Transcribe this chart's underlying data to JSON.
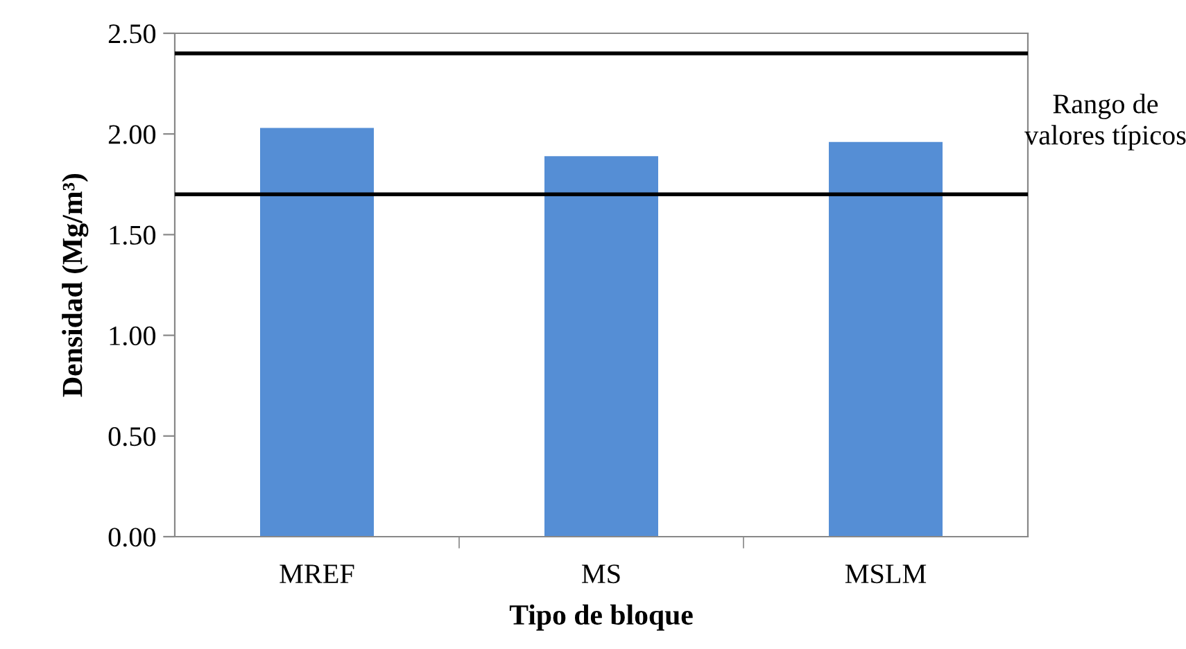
{
  "chart_data": {
    "type": "bar",
    "xlabel": "Tipo de bloque",
    "ylabel": "Densidad (Mg/m³)",
    "categories": [
      "MREF",
      "MS",
      "MSLM"
    ],
    "values": [
      2.03,
      1.89,
      1.96
    ],
    "color": "#558ed5",
    "ylim": [
      0,
      2.5
    ],
    "yticks": [
      {
        "value": 0,
        "label": "0.00"
      },
      {
        "value": 0.5,
        "label": "0.50"
      },
      {
        "value": 1,
        "label": "1.00"
      },
      {
        "value": 1.5,
        "label": "1.50"
      },
      {
        "value": 2,
        "label": "2.00"
      },
      {
        "value": 2.5,
        "label": "2.50"
      }
    ],
    "grid": false,
    "legend": false,
    "ref_lines": [
      {
        "axis": "y",
        "value": 2.4,
        "color": "#000000",
        "line_style": "solid"
      },
      {
        "axis": "y",
        "value": 1.7,
        "color": "#000000",
        "line_style": "solid"
      }
    ],
    "annotations": [
      "Rango de\nvalores típicos"
    ]
  }
}
